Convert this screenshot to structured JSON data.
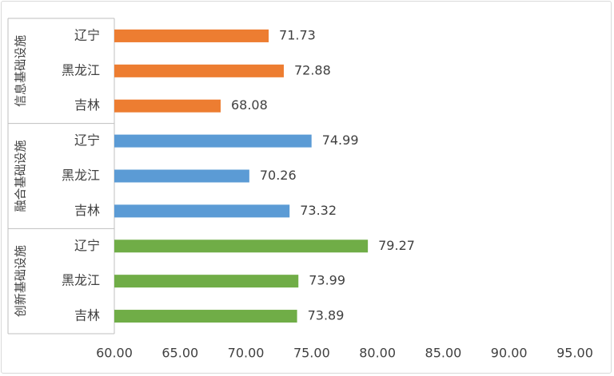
{
  "chart_data": {
    "type": "bar",
    "orientation": "horizontal",
    "groups": [
      {
        "name": "信息基础设施",
        "color": "#ED7D31",
        "categories": [
          "辽宁",
          "黑龙江",
          "吉林"
        ],
        "values": [
          71.73,
          72.88,
          68.08
        ]
      },
      {
        "name": "融合基础设施",
        "color": "#5B9BD5",
        "categories": [
          "辽宁",
          "黑龙江",
          "吉林"
        ],
        "values": [
          74.99,
          70.26,
          73.32
        ]
      },
      {
        "name": "创新基础设施",
        "color": "#70AD47",
        "categories": [
          "辽宁",
          "黑龙江",
          "吉林"
        ],
        "values": [
          79.27,
          73.99,
          73.89
        ]
      }
    ],
    "value_labels": [
      "71.73",
      "72.88",
      "68.08",
      "74.99",
      "70.26",
      "73.32",
      "79.27",
      "73.99",
      "73.89"
    ],
    "xlim": [
      60,
      95
    ],
    "xticks": [
      "60.00",
      "65.00",
      "70.00",
      "75.00",
      "80.00",
      "85.00",
      "90.00",
      "95.00"
    ],
    "grid": false,
    "legend": "none"
  }
}
